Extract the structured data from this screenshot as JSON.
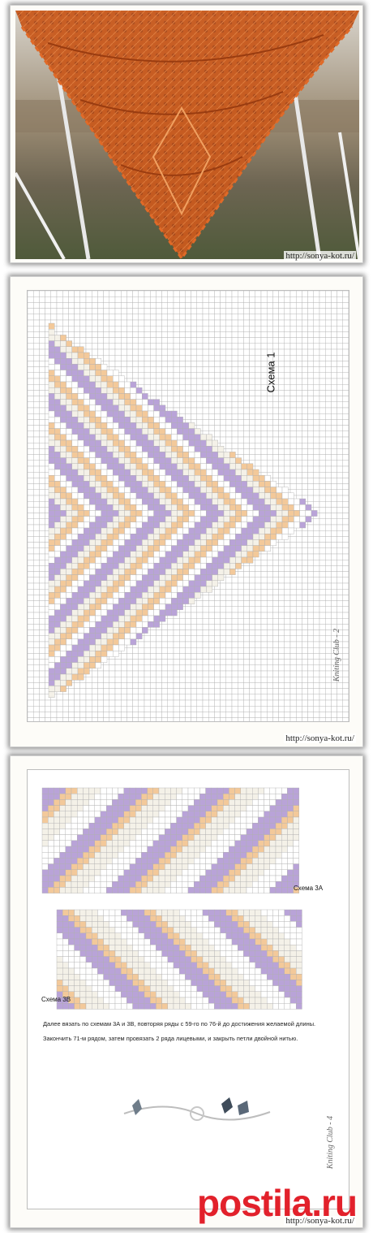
{
  "watermarks": {
    "photo": "http://sonya-kot.ru/",
    "chart1": "http://sonya-kot.ru/",
    "chart2": "http://sonya-kot.ru/"
  },
  "chart1": {
    "title": "Схема 1",
    "footer": "Kniting Club - 2"
  },
  "chart2": {
    "title_a": "Схема 3А",
    "title_b": "Схема 3В",
    "footer": "Kniting Club - 4",
    "note_line1": "Далее вязать по схемам 3А и 3В, повторяя ряды с 59-го по 76-й до достижения желаемой длины.",
    "note_line2": "Закончить 71-м рядом, затем провязать 2 ряда лицевыми, и закрыть петли двойной нитью."
  },
  "brand": "postila.ru",
  "colors": {
    "purple": "#b9a3d8",
    "orange": "#f3c99a",
    "cream": "#f4f1e8",
    "shawl": "#c85a1e",
    "brand": "#e2212b"
  }
}
